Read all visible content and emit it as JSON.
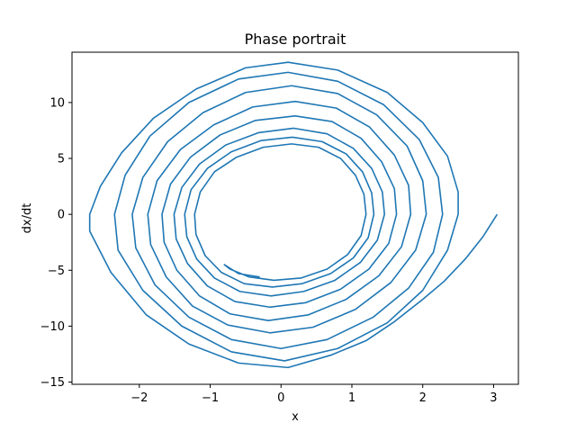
{
  "chart_data": {
    "type": "line",
    "title": "Phase portrait",
    "xlabel": "x",
    "ylabel": "dx/dt",
    "xlim": [
      -2.95,
      3.35
    ],
    "ylim": [
      -15.2,
      14.5
    ],
    "xticks": [
      -2,
      -1,
      0,
      1,
      2,
      3
    ],
    "yticks": [
      -15,
      -10,
      -5,
      0,
      5,
      10
    ],
    "xtick_labels": [
      "−2",
      "−1",
      "0",
      "1",
      "2",
      "3"
    ],
    "ytick_labels": [
      "−15",
      "−10",
      "−5",
      "0",
      "5",
      "10"
    ],
    "grid": false,
    "series": [
      {
        "color": "#1f77b4",
        "points": [
          [
            3.05,
            0.0
          ],
          [
            2.85,
            -2.0
          ],
          [
            2.6,
            -4.0
          ],
          [
            2.3,
            -6.0
          ],
          [
            2.0,
            -7.6
          ],
          [
            1.6,
            -9.6
          ],
          [
            1.2,
            -11.3
          ],
          [
            0.7,
            -12.6
          ],
          [
            0.1,
            -13.7
          ],
          [
            -0.6,
            -13.3
          ],
          [
            -1.3,
            -11.6
          ],
          [
            -1.9,
            -9.0
          ],
          [
            -2.4,
            -5.2
          ],
          [
            -2.7,
            -1.5
          ],
          [
            -2.7,
            0.0
          ],
          [
            -2.55,
            2.5
          ],
          [
            -2.25,
            5.5
          ],
          [
            -1.8,
            8.6
          ],
          [
            -1.2,
            11.2
          ],
          [
            -0.5,
            13.1
          ],
          [
            0.1,
            13.6
          ],
          [
            0.8,
            12.9
          ],
          [
            1.5,
            10.9
          ],
          [
            2.0,
            8.2
          ],
          [
            2.35,
            5.2
          ],
          [
            2.5,
            2.0
          ],
          [
            2.5,
            0.0
          ],
          [
            2.35,
            -3.2
          ],
          [
            2.0,
            -6.8
          ],
          [
            1.5,
            -9.7
          ],
          [
            0.8,
            -12.0
          ],
          [
            0.05,
            -13.1
          ],
          [
            -0.7,
            -12.3
          ],
          [
            -1.4,
            -10.0
          ],
          [
            -1.95,
            -6.8
          ],
          [
            -2.3,
            -3.2
          ],
          [
            -2.35,
            0.0
          ],
          [
            -2.2,
            3.5
          ],
          [
            -1.85,
            7.0
          ],
          [
            -1.3,
            10.0
          ],
          [
            -0.6,
            12.1
          ],
          [
            0.1,
            12.7
          ],
          [
            0.8,
            11.9
          ],
          [
            1.45,
            9.8
          ],
          [
            1.95,
            6.7
          ],
          [
            2.22,
            3.3
          ],
          [
            2.28,
            0.0
          ],
          [
            2.15,
            -3.4
          ],
          [
            1.8,
            -6.6
          ],
          [
            1.3,
            -9.2
          ],
          [
            0.65,
            -11.2
          ],
          [
            0.0,
            -12.0
          ],
          [
            -0.7,
            -11.2
          ],
          [
            -1.3,
            -9.2
          ],
          [
            -1.78,
            -6.3
          ],
          [
            -2.05,
            -3.0
          ],
          [
            -2.1,
            0.0
          ],
          [
            -1.95,
            3.3
          ],
          [
            -1.6,
            6.5
          ],
          [
            -1.1,
            9.1
          ],
          [
            -0.5,
            10.9
          ],
          [
            0.15,
            11.5
          ],
          [
            0.8,
            10.8
          ],
          [
            1.35,
            8.9
          ],
          [
            1.78,
            6.1
          ],
          [
            2.0,
            3.0
          ],
          [
            2.05,
            0.0
          ],
          [
            1.9,
            -3.2
          ],
          [
            1.55,
            -6.1
          ],
          [
            1.05,
            -8.5
          ],
          [
            0.45,
            -10.1
          ],
          [
            -0.15,
            -10.6
          ],
          [
            -0.75,
            -9.9
          ],
          [
            -1.25,
            -8.2
          ],
          [
            -1.62,
            -5.6
          ],
          [
            -1.84,
            -2.7
          ],
          [
            -1.88,
            0.0
          ],
          [
            -1.75,
            3.0
          ],
          [
            -1.42,
            5.8
          ],
          [
            -0.95,
            8.0
          ],
          [
            -0.4,
            9.6
          ],
          [
            0.2,
            10.1
          ],
          [
            0.78,
            9.5
          ],
          [
            1.25,
            7.8
          ],
          [
            1.6,
            5.3
          ],
          [
            1.8,
            2.6
          ],
          [
            1.83,
            0.0
          ],
          [
            1.7,
            -2.9
          ],
          [
            1.38,
            -5.5
          ],
          [
            0.92,
            -7.6
          ],
          [
            0.38,
            -9.0
          ],
          [
            -0.18,
            -9.5
          ],
          [
            -0.72,
            -8.9
          ],
          [
            -1.15,
            -7.3
          ],
          [
            -1.47,
            -5.0
          ],
          [
            -1.65,
            -2.5
          ],
          [
            -1.68,
            0.0
          ],
          [
            -1.56,
            2.7
          ],
          [
            -1.28,
            5.1
          ],
          [
            -0.86,
            7.1
          ],
          [
            -0.36,
            8.4
          ],
          [
            0.2,
            8.8
          ],
          [
            0.72,
            8.3
          ],
          [
            1.13,
            6.8
          ],
          [
            1.42,
            4.7
          ],
          [
            1.6,
            2.3
          ],
          [
            1.63,
            0.0
          ],
          [
            1.52,
            -2.6
          ],
          [
            1.24,
            -4.9
          ],
          [
            0.84,
            -6.7
          ],
          [
            0.35,
            -7.9
          ],
          [
            -0.16,
            -8.3
          ],
          [
            -0.65,
            -7.8
          ],
          [
            -1.04,
            -6.4
          ],
          [
            -1.32,
            -4.4
          ],
          [
            -1.48,
            -2.2
          ],
          [
            -1.51,
            0.0
          ],
          [
            -1.4,
            2.4
          ],
          [
            -1.15,
            4.5
          ],
          [
            -0.78,
            6.2
          ],
          [
            -0.32,
            7.3
          ],
          [
            0.18,
            7.7
          ],
          [
            0.65,
            7.2
          ],
          [
            1.02,
            5.9
          ],
          [
            1.28,
            4.1
          ],
          [
            1.43,
            2.0
          ],
          [
            1.46,
            0.0
          ],
          [
            1.36,
            -2.3
          ],
          [
            1.12,
            -4.3
          ],
          [
            0.76,
            -5.9
          ],
          [
            0.32,
            -6.9
          ],
          [
            -0.14,
            -7.3
          ],
          [
            -0.58,
            -6.9
          ],
          [
            -0.94,
            -5.7
          ],
          [
            -1.19,
            -4.0
          ],
          [
            -1.33,
            -2.0
          ],
          [
            -1.36,
            0.0
          ],
          [
            -1.27,
            2.2
          ],
          [
            -1.04,
            4.1
          ],
          [
            -0.7,
            5.6
          ],
          [
            -0.28,
            6.6
          ],
          [
            0.16,
            6.9
          ],
          [
            0.58,
            6.5
          ],
          [
            0.92,
            5.4
          ],
          [
            1.15,
            3.8
          ],
          [
            1.28,
            1.9
          ],
          [
            1.31,
            0.0
          ],
          [
            1.23,
            -2.1
          ],
          [
            1.02,
            -3.9
          ],
          [
            0.7,
            -5.3
          ],
          [
            0.3,
            -6.2
          ],
          [
            -0.12,
            -6.5
          ],
          [
            -0.52,
            -6.2
          ],
          [
            -0.84,
            -5.2
          ],
          [
            -1.07,
            -3.7
          ],
          [
            -1.2,
            -1.8
          ],
          [
            -1.22,
            0.0
          ],
          [
            -1.14,
            2.0
          ],
          [
            -0.94,
            3.8
          ],
          [
            -0.63,
            5.1
          ],
          [
            -0.25,
            6.0
          ],
          [
            0.15,
            6.3
          ],
          [
            0.53,
            6.0
          ],
          [
            0.84,
            5.0
          ],
          [
            1.05,
            3.5
          ],
          [
            1.17,
            1.8
          ],
          [
            1.2,
            0.0
          ],
          [
            1.13,
            -1.9
          ],
          [
            0.94,
            -3.6
          ],
          [
            0.65,
            -4.9
          ],
          [
            0.28,
            -5.7
          ],
          [
            -0.1,
            -5.9
          ],
          [
            -0.45,
            -5.6
          ],
          [
            -0.72,
            -4.9
          ],
          [
            -0.8,
            -4.5
          ],
          [
            -0.6,
            -5.3
          ],
          [
            -0.3,
            -5.6
          ]
        ]
      }
    ]
  }
}
